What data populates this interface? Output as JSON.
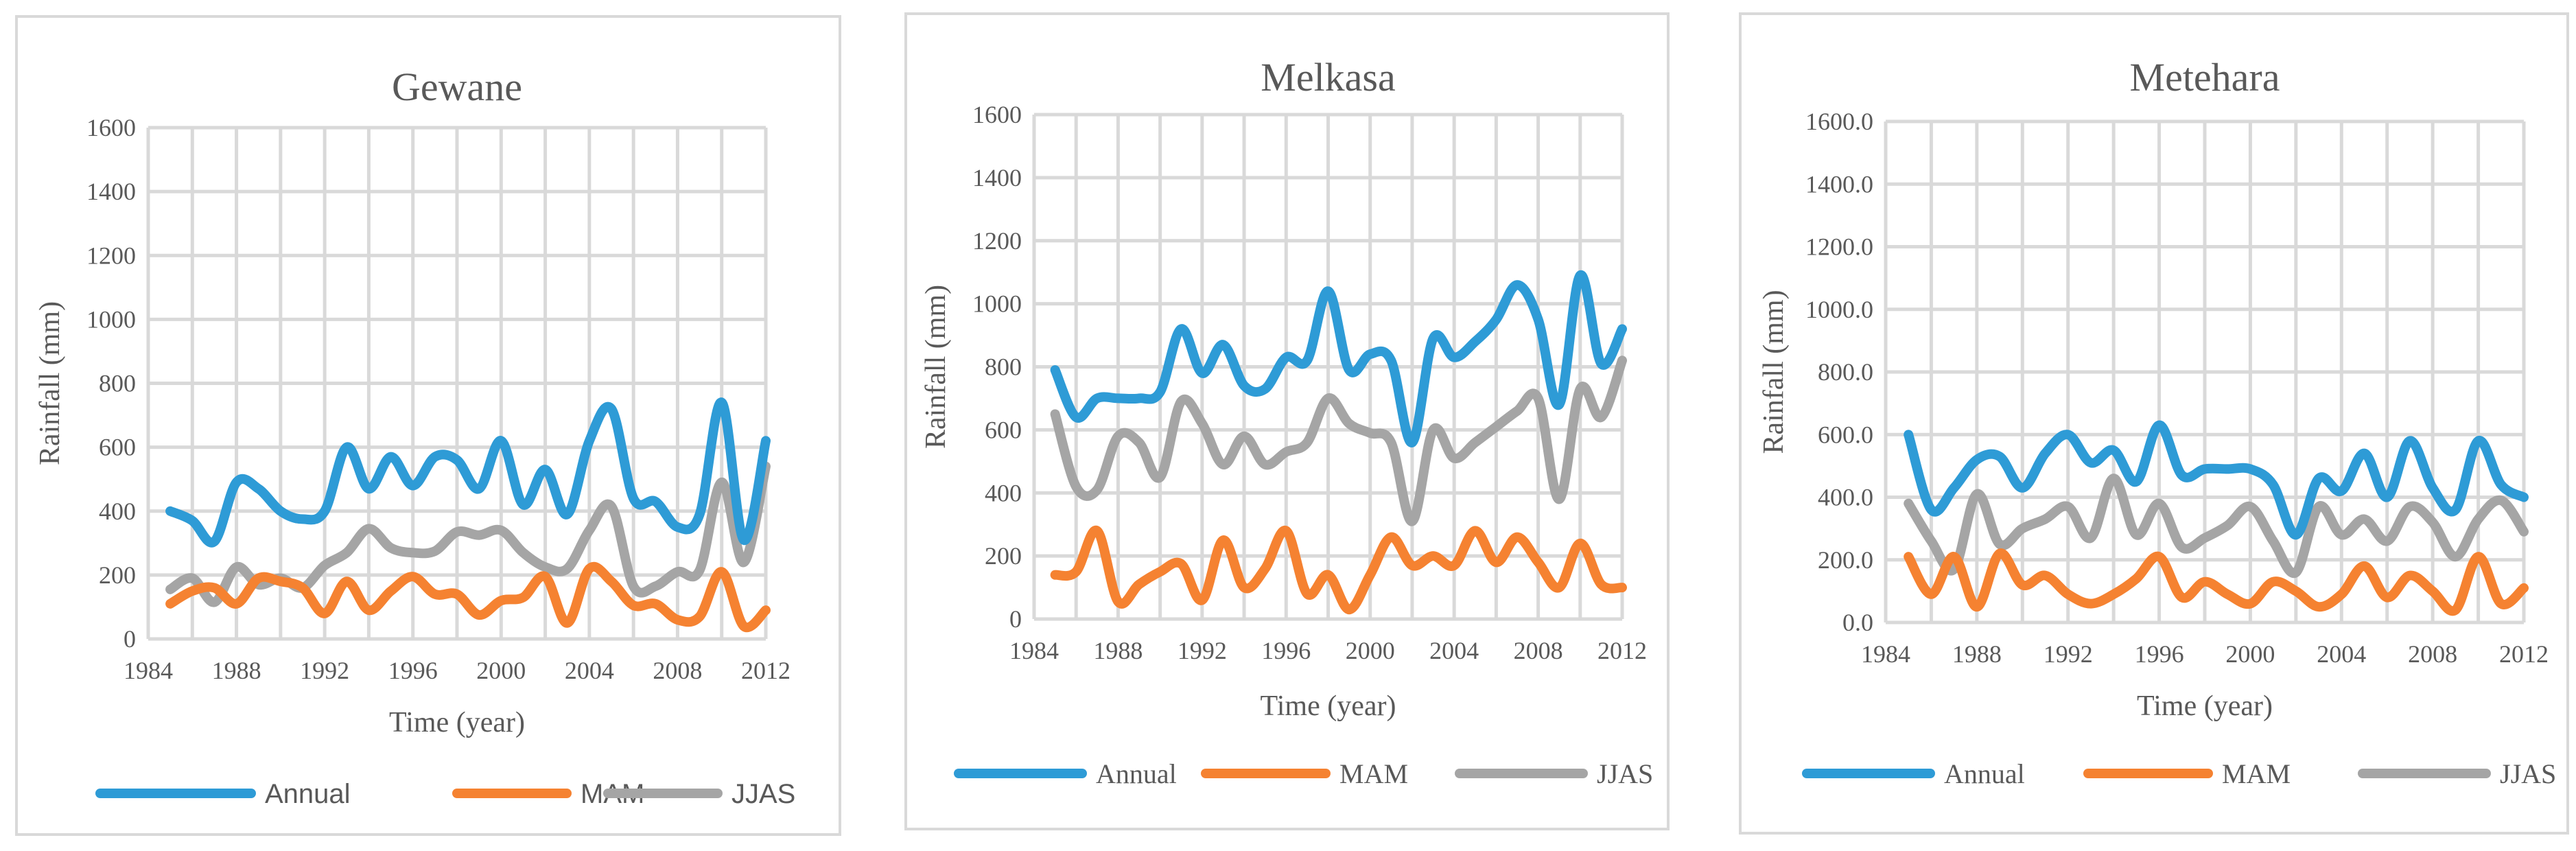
{
  "colors": {
    "annual": "#2E9BD6",
    "mam": "#F58231",
    "jjas": "#A5A5A5"
  },
  "chart_data": [
    {
      "type": "line",
      "title": "Gewane",
      "xlabel": "Time (year)",
      "ylabel": "Rainfall (mm)",
      "ylim": [
        0,
        1600
      ],
      "yticks": [
        "0",
        "200",
        "400",
        "600",
        "800",
        "1000",
        "1200",
        "1400",
        "1600"
      ],
      "xlim": [
        1984,
        2012
      ],
      "xticks": [
        "1984",
        "1988",
        "1992",
        "1996",
        "2000",
        "2004",
        "2008",
        "2012"
      ],
      "x": [
        1985,
        1986,
        1987,
        1988,
        1989,
        1990,
        1991,
        1992,
        1993,
        1994,
        1995,
        1996,
        1997,
        1998,
        1999,
        2000,
        2001,
        2002,
        2003,
        2004,
        2005,
        2006,
        2007,
        2008,
        2009,
        2010,
        2011,
        2012
      ],
      "series": [
        {
          "name": "Annual",
          "values": [
            400,
            370,
            305,
            490,
            470,
            400,
            375,
            400,
            600,
            470,
            570,
            480,
            570,
            560,
            470,
            620,
            420,
            530,
            390,
            620,
            720,
            440,
            430,
            350,
            390,
            740,
            310,
            620
          ]
        },
        {
          "name": "MAM",
          "values": [
            110,
            150,
            160,
            110,
            190,
            180,
            160,
            80,
            180,
            90,
            150,
            195,
            140,
            140,
            75,
            120,
            130,
            195,
            50,
            220,
            180,
            105,
            110,
            60,
            70,
            210,
            40,
            90
          ]
        },
        {
          "name": "JJAS",
          "values": [
            155,
            190,
            115,
            225,
            170,
            190,
            160,
            230,
            270,
            345,
            285,
            270,
            275,
            335,
            325,
            340,
            270,
            225,
            220,
            340,
            415,
            165,
            165,
            210,
            215,
            490,
            240,
            540
          ]
        }
      ],
      "legend": "bottom"
    },
    {
      "type": "line",
      "title": "Melkasa",
      "xlabel": "Time (year)",
      "ylabel": "Rainfall (mm)",
      "ylim": [
        0,
        1600
      ],
      "yticks": [
        "0",
        "200",
        "400",
        "600",
        "800",
        "1000",
        "1200",
        "1400",
        "1600"
      ],
      "xlim": [
        1984,
        2012
      ],
      "xticks": [
        "1984",
        "1988",
        "1992",
        "1996",
        "2000",
        "2004",
        "2008",
        "2012"
      ],
      "x": [
        1985,
        1986,
        1987,
        1988,
        1989,
        1990,
        1991,
        1992,
        1993,
        1994,
        1995,
        1996,
        1997,
        1998,
        1999,
        2000,
        2001,
        2002,
        2003,
        2004,
        2005,
        2006,
        2007,
        2008,
        2009,
        2010,
        2011,
        2012
      ],
      "series": [
        {
          "name": "Annual",
          "values": [
            790,
            640,
            700,
            700,
            700,
            720,
            920,
            780,
            870,
            740,
            730,
            830,
            820,
            1040,
            790,
            840,
            820,
            560,
            890,
            830,
            880,
            950,
            1060,
            950,
            680,
            1090,
            810,
            920
          ]
        },
        {
          "name": "MAM",
          "values": [
            140,
            150,
            280,
            55,
            110,
            150,
            175,
            60,
            250,
            100,
            160,
            280,
            80,
            140,
            30,
            140,
            260,
            170,
            200,
            170,
            280,
            180,
            260,
            180,
            100,
            240,
            110,
            100
          ]
        },
        {
          "name": "JJAS",
          "values": [
            650,
            420,
            410,
            580,
            560,
            450,
            690,
            620,
            490,
            580,
            490,
            530,
            560,
            700,
            620,
            590,
            560,
            310,
            600,
            510,
            560,
            610,
            660,
            700,
            380,
            730,
            640,
            820
          ]
        }
      ],
      "legend": "bottom"
    },
    {
      "type": "line",
      "title": "Metehara",
      "xlabel": "Time (year)",
      "ylabel": "Rainfall (mm)",
      "ylim": [
        0,
        1600
      ],
      "yticks": [
        "0.0",
        "200.0",
        "400.0",
        "600.0",
        "800.0",
        "1000.0",
        "1200.0",
        "1400.0",
        "1600.0"
      ],
      "xlim": [
        1984,
        2012
      ],
      "xticks": [
        "1984",
        "1988",
        "1992",
        "1996",
        "2000",
        "2004",
        "2008",
        "2012"
      ],
      "x": [
        1985,
        1986,
        1987,
        1988,
        1989,
        1990,
        1991,
        1992,
        1993,
        1994,
        1995,
        1996,
        1997,
        1998,
        1999,
        2000,
        2001,
        2002,
        2003,
        2004,
        2005,
        2006,
        2007,
        2008,
        2009,
        2010,
        2011,
        2012
      ],
      "series": [
        {
          "name": "Annual",
          "values": [
            600,
            360,
            430,
            520,
            530,
            430,
            540,
            600,
            510,
            550,
            450,
            630,
            470,
            490,
            490,
            490,
            440,
            280,
            460,
            420,
            540,
            400,
            580,
            430,
            360,
            580,
            440,
            400
          ]
        },
        {
          "name": "MAM",
          "values": [
            210,
            90,
            210,
            50,
            220,
            120,
            150,
            90,
            60,
            90,
            140,
            210,
            80,
            130,
            90,
            60,
            130,
            100,
            50,
            90,
            180,
            80,
            150,
            100,
            40,
            210,
            60,
            110
          ]
        },
        {
          "name": "JJAS",
          "values": [
            380,
            260,
            170,
            410,
            250,
            300,
            330,
            370,
            270,
            460,
            280,
            380,
            240,
            270,
            310,
            370,
            260,
            160,
            370,
            280,
            330,
            260,
            370,
            320,
            210,
            330,
            390,
            290
          ]
        }
      ],
      "legend": "bottom"
    }
  ]
}
